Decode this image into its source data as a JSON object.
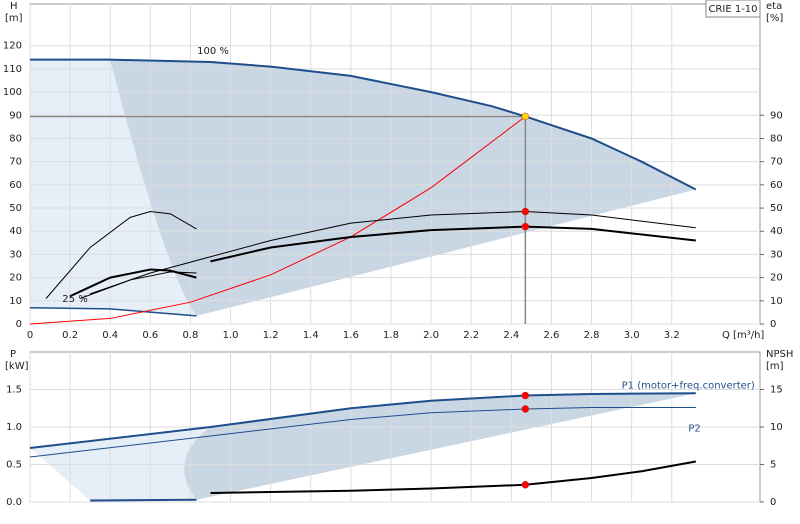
{
  "chart_data": [
    {
      "type": "line",
      "title": "CRIE 1-10",
      "ylabel": "H",
      "yunit": "[m]",
      "y2label": "eta",
      "y2unit": "[%]",
      "xlabel": "Q [m³/h]",
      "xlim": [
        0,
        3.64
      ],
      "ylim": [
        0,
        138
      ],
      "y2lim": [
        0,
        138
      ],
      "grid": true,
      "xticks": [
        0,
        0.2,
        0.4,
        0.6,
        0.8,
        {
          "value": 1,
          "label": "1.0"
        },
        1.2,
        1.4,
        1.6,
        1.8,
        {
          "value": 2,
          "label": "2.0"
        },
        2.2,
        2.4,
        2.6,
        2.8,
        {
          "value": 3,
          "label": "3.0"
        },
        3.2
      ],
      "yticks": [
        0,
        10,
        20,
        30,
        40,
        50,
        60,
        70,
        80,
        90,
        100,
        110,
        120
      ],
      "y2ticks": [
        0,
        10,
        20,
        30,
        40,
        50,
        60,
        70,
        80,
        90
      ],
      "annotations": [
        "100 %",
        "25 %"
      ],
      "series": [
        {
          "color": "#1f4e8c",
          "width": 2,
          "x": [
            0,
            0.4,
            0.9,
            1.2,
            1.6,
            2.0,
            2.3,
            2.47,
            2.8,
            3.05,
            3.32
          ],
          "values": [
            114,
            114,
            113,
            111,
            107,
            100,
            94,
            89.5,
            80,
            70,
            58
          ]
        },
        {
          "color": "#1f4e8c",
          "width": 1.5,
          "x": [
            0,
            0.4,
            0.83
          ],
          "values": [
            7,
            6.5,
            3.5
          ]
        },
        {
          "color": "#ff0000",
          "width": 1,
          "x": [
            0,
            0.4,
            0.8,
            1.2,
            1.6,
            2.0,
            2.47
          ],
          "values": [
            0,
            2.4,
            9.4,
            21.2,
            37.6,
            58.8,
            89.5
          ]
        },
        {
          "color": "#000000",
          "width": 1,
          "axis": "y2",
          "x": [
            0.3,
            0.6,
            0.9,
            1.2,
            1.6,
            2.0,
            2.47,
            2.8,
            3.32
          ],
          "values": [
            13,
            22,
            29,
            36,
            43.5,
            47,
            48.5,
            47,
            41.5
          ]
        },
        {
          "color": "#000000",
          "width": 2,
          "axis": "y2",
          "x": [
            0.9,
            1.2,
            1.6,
            2.0,
            2.47,
            2.8,
            3.32
          ],
          "values": [
            27,
            33,
            37.5,
            40.5,
            42,
            41,
            36
          ]
        },
        {
          "color": "#000000",
          "width": 1,
          "axis": "y2",
          "x": [
            0.08,
            0.3,
            0.5,
            0.6,
            0.7,
            0.83
          ],
          "values": [
            11,
            33,
            46,
            48.5,
            47.5,
            41
          ]
        },
        {
          "color": "#000000",
          "width": 2,
          "axis": "y2",
          "x": [
            0.2,
            0.4,
            0.6,
            0.7,
            0.83
          ],
          "values": [
            12,
            20,
            23.5,
            23,
            20
          ]
        },
        {
          "color": "#000000",
          "width": 1,
          "axis": "y2",
          "x": [
            0.25,
            0.5,
            0.7,
            0.83
          ],
          "values": [
            11,
            19,
            22.5,
            22
          ]
        }
      ],
      "points": [
        {
          "x": 2.47,
          "y": 89.5,
          "color": "#ffd700",
          "crosshair": true
        },
        {
          "x": 2.47,
          "y": 48.5,
          "color": "#ff0000",
          "axis": "y2"
        },
        {
          "x": 2.47,
          "y": 42,
          "color": "#ff0000",
          "axis": "y2"
        }
      ]
    },
    {
      "type": "line",
      "ylabel": "P",
      "yunit": "[kW]",
      "y2label": "NPSH",
      "y2unit": "[m]",
      "ylim": [
        0,
        2
      ],
      "y2lim": [
        0,
        20
      ],
      "grid": true,
      "yticks": [
        {
          "value": 0,
          "label": "0.0"
        },
        0.5,
        {
          "value": 1,
          "label": "1.0"
        },
        1.5
      ],
      "y2ticks": [
        0,
        5,
        10,
        15
      ],
      "series": [
        {
          "name": "P1 (motor+freq.converter)",
          "color": "#1f4e8c",
          "width": 2,
          "x": [
            0,
            0.9,
            1.6,
            2.0,
            2.47,
            2.8,
            3.32
          ],
          "values": [
            0.72,
            1.0,
            1.25,
            1.35,
            1.42,
            1.44,
            1.45
          ]
        },
        {
          "name": "P2",
          "color": "#1f4e8c",
          "width": 1,
          "x": [
            0,
            0.9,
            1.6,
            2.0,
            2.47,
            2.8,
            3.32
          ],
          "values": [
            0.6,
            0.88,
            1.1,
            1.19,
            1.24,
            1.26,
            1.26
          ]
        },
        {
          "color": "#1f4e8c",
          "width": 2,
          "x": [
            0.3,
            0.83
          ],
          "values": [
            0.02,
            0.03
          ]
        },
        {
          "color": "#000000",
          "width": 2,
          "axis": "y2",
          "x": [
            0.9,
            1.6,
            2.0,
            2.47,
            2.8,
            3.05,
            3.32
          ],
          "values": [
            1.2,
            1.5,
            1.8,
            2.3,
            3.2,
            4.1,
            5.4
          ]
        }
      ],
      "points": [
        {
          "x": 2.47,
          "y": 1.42,
          "color": "#ff0000"
        },
        {
          "x": 2.47,
          "y": 1.24,
          "color": "#ff0000"
        },
        {
          "x": 2.47,
          "y": 2.3,
          "color": "#ff0000",
          "axis": "y2"
        }
      ]
    }
  ]
}
